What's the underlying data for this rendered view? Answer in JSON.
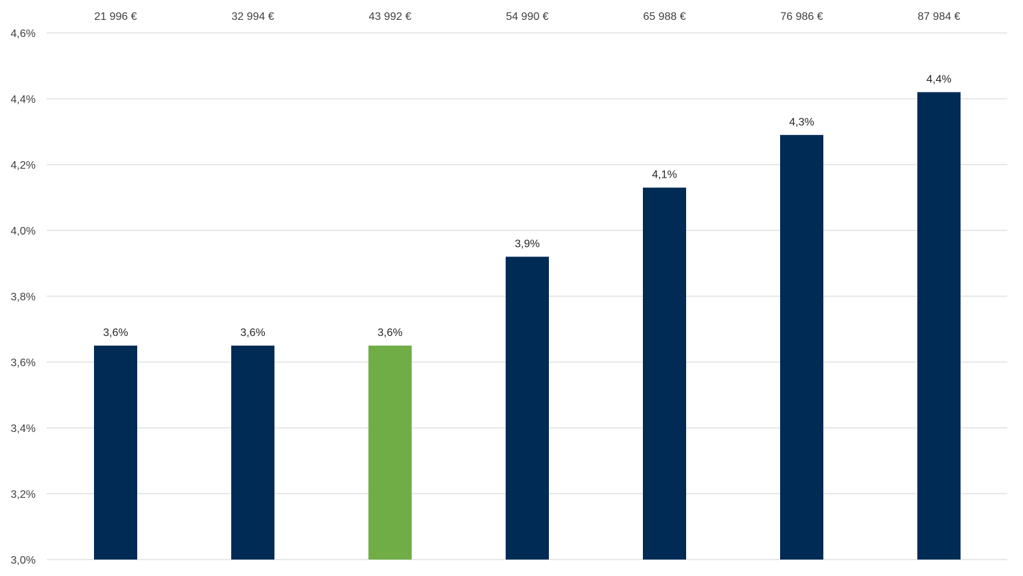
{
  "chart_data": {
    "type": "bar",
    "categories": [
      "21 996 €",
      "32 994 €",
      "43 992 €",
      "54 990 €",
      "65 988 €",
      "76 986 €",
      "87 984 €"
    ],
    "values": [
      3.65,
      3.65,
      3.65,
      3.92,
      4.13,
      4.29,
      4.42
    ],
    "data_labels": [
      "3,6%",
      "3,6%",
      "3,6%",
      "3,9%",
      "4,1%",
      "4,3%",
      "4,4%"
    ],
    "ylim": [
      3.0,
      4.6
    ],
    "yticks": [
      3.0,
      3.2,
      3.4,
      3.6,
      3.8,
      4.0,
      4.2,
      4.4,
      4.6
    ],
    "ytick_labels": [
      "3,0%",
      "3,2%",
      "3,4%",
      "3,6%",
      "3,8%",
      "4,0%",
      "4,2%",
      "4,4%",
      "4,6%"
    ],
    "category_axis_position": "top",
    "grid": true,
    "legend": "none",
    "colors": {
      "bar": "#002b55",
      "highlight_bar": "#70ad47",
      "gridline": "#d9d9d9"
    },
    "highlight_index": 2
  }
}
